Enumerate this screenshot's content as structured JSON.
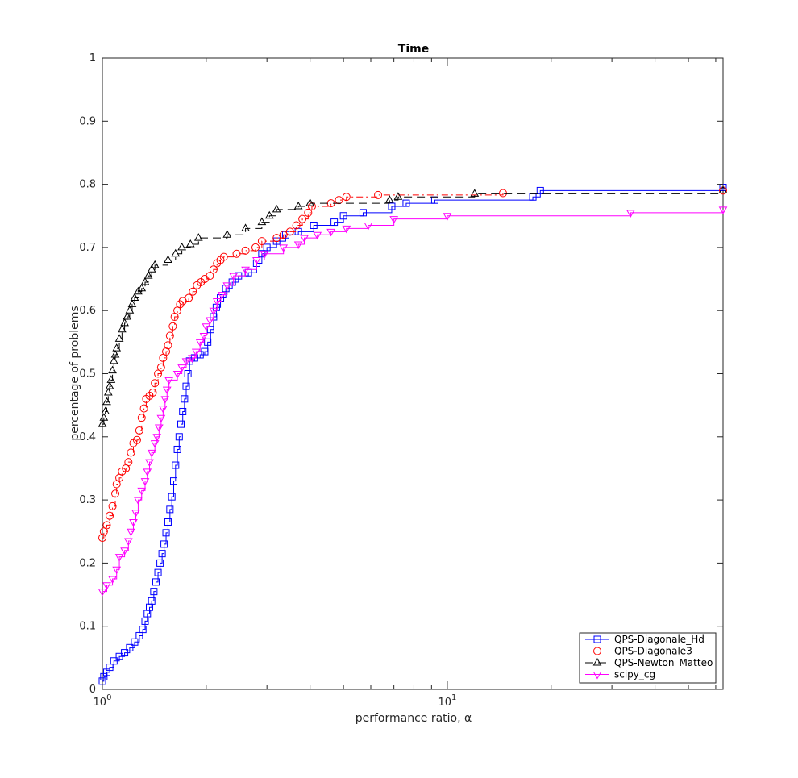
{
  "chart_data": {
    "type": "line",
    "title": "Time",
    "xlabel": "performance ratio, α",
    "ylabel": "percentage of problems",
    "xscale": "log",
    "xlim": [
      1,
      63
    ],
    "ylim": [
      0,
      1
    ],
    "grid": false,
    "legend_position": "bottom-right",
    "y_ticks": [
      "0",
      "0.1",
      "0.2",
      "0.3",
      "0.4",
      "0.5",
      "0.6",
      "0.7",
      "0.8",
      "0.9",
      "1"
    ],
    "x_ticks": [
      {
        "value": 1,
        "base": "10",
        "exp": "0"
      },
      {
        "value": 10,
        "base": "10",
        "exp": "1"
      }
    ],
    "series": [
      {
        "name": "QPS-Diagonale_Hd",
        "color": "#0000ff",
        "dash": "solid",
        "marker": "square",
        "points": [
          [
            1.0,
            0.013
          ],
          [
            1.01,
            0.02
          ],
          [
            1.03,
            0.027
          ],
          [
            1.05,
            0.035
          ],
          [
            1.08,
            0.045
          ],
          [
            1.12,
            0.052
          ],
          [
            1.16,
            0.058
          ],
          [
            1.2,
            0.066
          ],
          [
            1.24,
            0.075
          ],
          [
            1.28,
            0.085
          ],
          [
            1.31,
            0.095
          ],
          [
            1.33,
            0.108
          ],
          [
            1.35,
            0.12
          ],
          [
            1.37,
            0.13
          ],
          [
            1.39,
            0.14
          ],
          [
            1.41,
            0.155
          ],
          [
            1.43,
            0.17
          ],
          [
            1.45,
            0.185
          ],
          [
            1.47,
            0.2
          ],
          [
            1.49,
            0.215
          ],
          [
            1.51,
            0.23
          ],
          [
            1.53,
            0.248
          ],
          [
            1.55,
            0.265
          ],
          [
            1.57,
            0.285
          ],
          [
            1.59,
            0.305
          ],
          [
            1.61,
            0.33
          ],
          [
            1.63,
            0.355
          ],
          [
            1.65,
            0.38
          ],
          [
            1.67,
            0.4
          ],
          [
            1.69,
            0.42
          ],
          [
            1.71,
            0.44
          ],
          [
            1.73,
            0.46
          ],
          [
            1.75,
            0.48
          ],
          [
            1.77,
            0.5
          ],
          [
            1.79,
            0.52
          ],
          [
            1.85,
            0.525
          ],
          [
            1.92,
            0.53
          ],
          [
            1.98,
            0.535
          ],
          [
            2.02,
            0.55
          ],
          [
            2.06,
            0.57
          ],
          [
            2.1,
            0.59
          ],
          [
            2.14,
            0.605
          ],
          [
            2.2,
            0.62
          ],
          [
            2.28,
            0.635
          ],
          [
            2.38,
            0.645
          ],
          [
            2.48,
            0.655
          ],
          [
            2.65,
            0.66
          ],
          [
            2.8,
            0.675
          ],
          [
            2.9,
            0.69
          ],
          [
            3.0,
            0.7
          ],
          [
            3.2,
            0.71
          ],
          [
            3.4,
            0.72
          ],
          [
            3.7,
            0.725
          ],
          [
            4.1,
            0.735
          ],
          [
            4.7,
            0.74
          ],
          [
            5.0,
            0.75
          ],
          [
            5.7,
            0.755
          ],
          [
            6.9,
            0.765
          ],
          [
            7.6,
            0.77
          ],
          [
            9.2,
            0.775
          ],
          [
            17.7,
            0.78
          ],
          [
            18.6,
            0.79
          ],
          [
            63,
            0.795
          ]
        ]
      },
      {
        "name": "QPS-Diagonale3",
        "color": "#ff0000",
        "dash": "dashdot",
        "marker": "circle",
        "points": [
          [
            1.0,
            0.24
          ],
          [
            1.01,
            0.25
          ],
          [
            1.03,
            0.26
          ],
          [
            1.05,
            0.275
          ],
          [
            1.07,
            0.29
          ],
          [
            1.09,
            0.31
          ],
          [
            1.1,
            0.325
          ],
          [
            1.12,
            0.335
          ],
          [
            1.14,
            0.345
          ],
          [
            1.17,
            0.35
          ],
          [
            1.19,
            0.36
          ],
          [
            1.21,
            0.375
          ],
          [
            1.23,
            0.39
          ],
          [
            1.26,
            0.395
          ],
          [
            1.28,
            0.41
          ],
          [
            1.3,
            0.43
          ],
          [
            1.32,
            0.445
          ],
          [
            1.34,
            0.46
          ],
          [
            1.37,
            0.465
          ],
          [
            1.4,
            0.47
          ],
          [
            1.42,
            0.485
          ],
          [
            1.45,
            0.5
          ],
          [
            1.48,
            0.51
          ],
          [
            1.5,
            0.525
          ],
          [
            1.53,
            0.535
          ],
          [
            1.55,
            0.545
          ],
          [
            1.57,
            0.56
          ],
          [
            1.6,
            0.575
          ],
          [
            1.62,
            0.59
          ],
          [
            1.65,
            0.6
          ],
          [
            1.68,
            0.61
          ],
          [
            1.71,
            0.615
          ],
          [
            1.78,
            0.62
          ],
          [
            1.83,
            0.63
          ],
          [
            1.88,
            0.64
          ],
          [
            1.93,
            0.645
          ],
          [
            1.98,
            0.65
          ],
          [
            2.05,
            0.655
          ],
          [
            2.1,
            0.665
          ],
          [
            2.15,
            0.675
          ],
          [
            2.2,
            0.68
          ],
          [
            2.25,
            0.685
          ],
          [
            2.45,
            0.69
          ],
          [
            2.6,
            0.695
          ],
          [
            2.78,
            0.7
          ],
          [
            2.9,
            0.71
          ],
          [
            3.2,
            0.715
          ],
          [
            3.35,
            0.72
          ],
          [
            3.5,
            0.725
          ],
          [
            3.65,
            0.735
          ],
          [
            3.8,
            0.745
          ],
          [
            3.95,
            0.755
          ],
          [
            4.05,
            0.765
          ],
          [
            4.6,
            0.77
          ],
          [
            4.85,
            0.775
          ],
          [
            5.1,
            0.78
          ],
          [
            6.3,
            0.783
          ],
          [
            14.5,
            0.786
          ],
          [
            63,
            0.79
          ]
        ]
      },
      {
        "name": "QPS-Newton_Matteo",
        "color": "#000000",
        "dash": "dashed",
        "marker": "triangle-up",
        "points": [
          [
            1.0,
            0.42
          ],
          [
            1.01,
            0.43
          ],
          [
            1.02,
            0.44
          ],
          [
            1.03,
            0.455
          ],
          [
            1.04,
            0.47
          ],
          [
            1.05,
            0.48
          ],
          [
            1.06,
            0.49
          ],
          [
            1.07,
            0.505
          ],
          [
            1.08,
            0.52
          ],
          [
            1.09,
            0.53
          ],
          [
            1.1,
            0.54
          ],
          [
            1.12,
            0.555
          ],
          [
            1.14,
            0.57
          ],
          [
            1.16,
            0.58
          ],
          [
            1.18,
            0.59
          ],
          [
            1.2,
            0.6
          ],
          [
            1.22,
            0.61
          ],
          [
            1.24,
            0.62
          ],
          [
            1.27,
            0.63
          ],
          [
            1.3,
            0.635
          ],
          [
            1.33,
            0.645
          ],
          [
            1.36,
            0.655
          ],
          [
            1.39,
            0.665
          ],
          [
            1.42,
            0.672
          ],
          [
            1.55,
            0.68
          ],
          [
            1.63,
            0.69
          ],
          [
            1.7,
            0.7
          ],
          [
            1.8,
            0.705
          ],
          [
            1.9,
            0.715
          ],
          [
            2.3,
            0.72
          ],
          [
            2.6,
            0.73
          ],
          [
            2.9,
            0.74
          ],
          [
            3.05,
            0.75
          ],
          [
            3.2,
            0.76
          ],
          [
            3.7,
            0.765
          ],
          [
            4.0,
            0.77
          ],
          [
            6.8,
            0.775
          ],
          [
            7.2,
            0.78
          ],
          [
            12,
            0.785
          ],
          [
            63,
            0.79
          ]
        ]
      },
      {
        "name": "scipy_cg",
        "color": "#ff00ff",
        "dash": "solid",
        "marker": "triangle-down",
        "points": [
          [
            1.0,
            0.155
          ],
          [
            1.03,
            0.165
          ],
          [
            1.07,
            0.175
          ],
          [
            1.1,
            0.19
          ],
          [
            1.12,
            0.21
          ],
          [
            1.16,
            0.22
          ],
          [
            1.19,
            0.235
          ],
          [
            1.21,
            0.25
          ],
          [
            1.23,
            0.265
          ],
          [
            1.25,
            0.28
          ],
          [
            1.27,
            0.3
          ],
          [
            1.3,
            0.315
          ],
          [
            1.33,
            0.33
          ],
          [
            1.35,
            0.345
          ],
          [
            1.37,
            0.36
          ],
          [
            1.39,
            0.375
          ],
          [
            1.42,
            0.39
          ],
          [
            1.44,
            0.4
          ],
          [
            1.46,
            0.415
          ],
          [
            1.48,
            0.43
          ],
          [
            1.5,
            0.445
          ],
          [
            1.52,
            0.46
          ],
          [
            1.54,
            0.475
          ],
          [
            1.56,
            0.49
          ],
          [
            1.65,
            0.5
          ],
          [
            1.7,
            0.51
          ],
          [
            1.75,
            0.52
          ],
          [
            1.82,
            0.525
          ],
          [
            1.87,
            0.535
          ],
          [
            1.92,
            0.55
          ],
          [
            1.97,
            0.56
          ],
          [
            2.0,
            0.575
          ],
          [
            2.05,
            0.585
          ],
          [
            2.1,
            0.6
          ],
          [
            2.15,
            0.615
          ],
          [
            2.22,
            0.625
          ],
          [
            2.3,
            0.64
          ],
          [
            2.4,
            0.655
          ],
          [
            2.6,
            0.665
          ],
          [
            2.8,
            0.68
          ],
          [
            2.95,
            0.69
          ],
          [
            3.35,
            0.7
          ],
          [
            3.7,
            0.705
          ],
          [
            3.85,
            0.715
          ],
          [
            4.2,
            0.72
          ],
          [
            4.6,
            0.725
          ],
          [
            5.1,
            0.73
          ],
          [
            5.9,
            0.735
          ],
          [
            7.0,
            0.745
          ],
          [
            10,
            0.75
          ],
          [
            34,
            0.755
          ],
          [
            63,
            0.76
          ]
        ]
      }
    ]
  }
}
